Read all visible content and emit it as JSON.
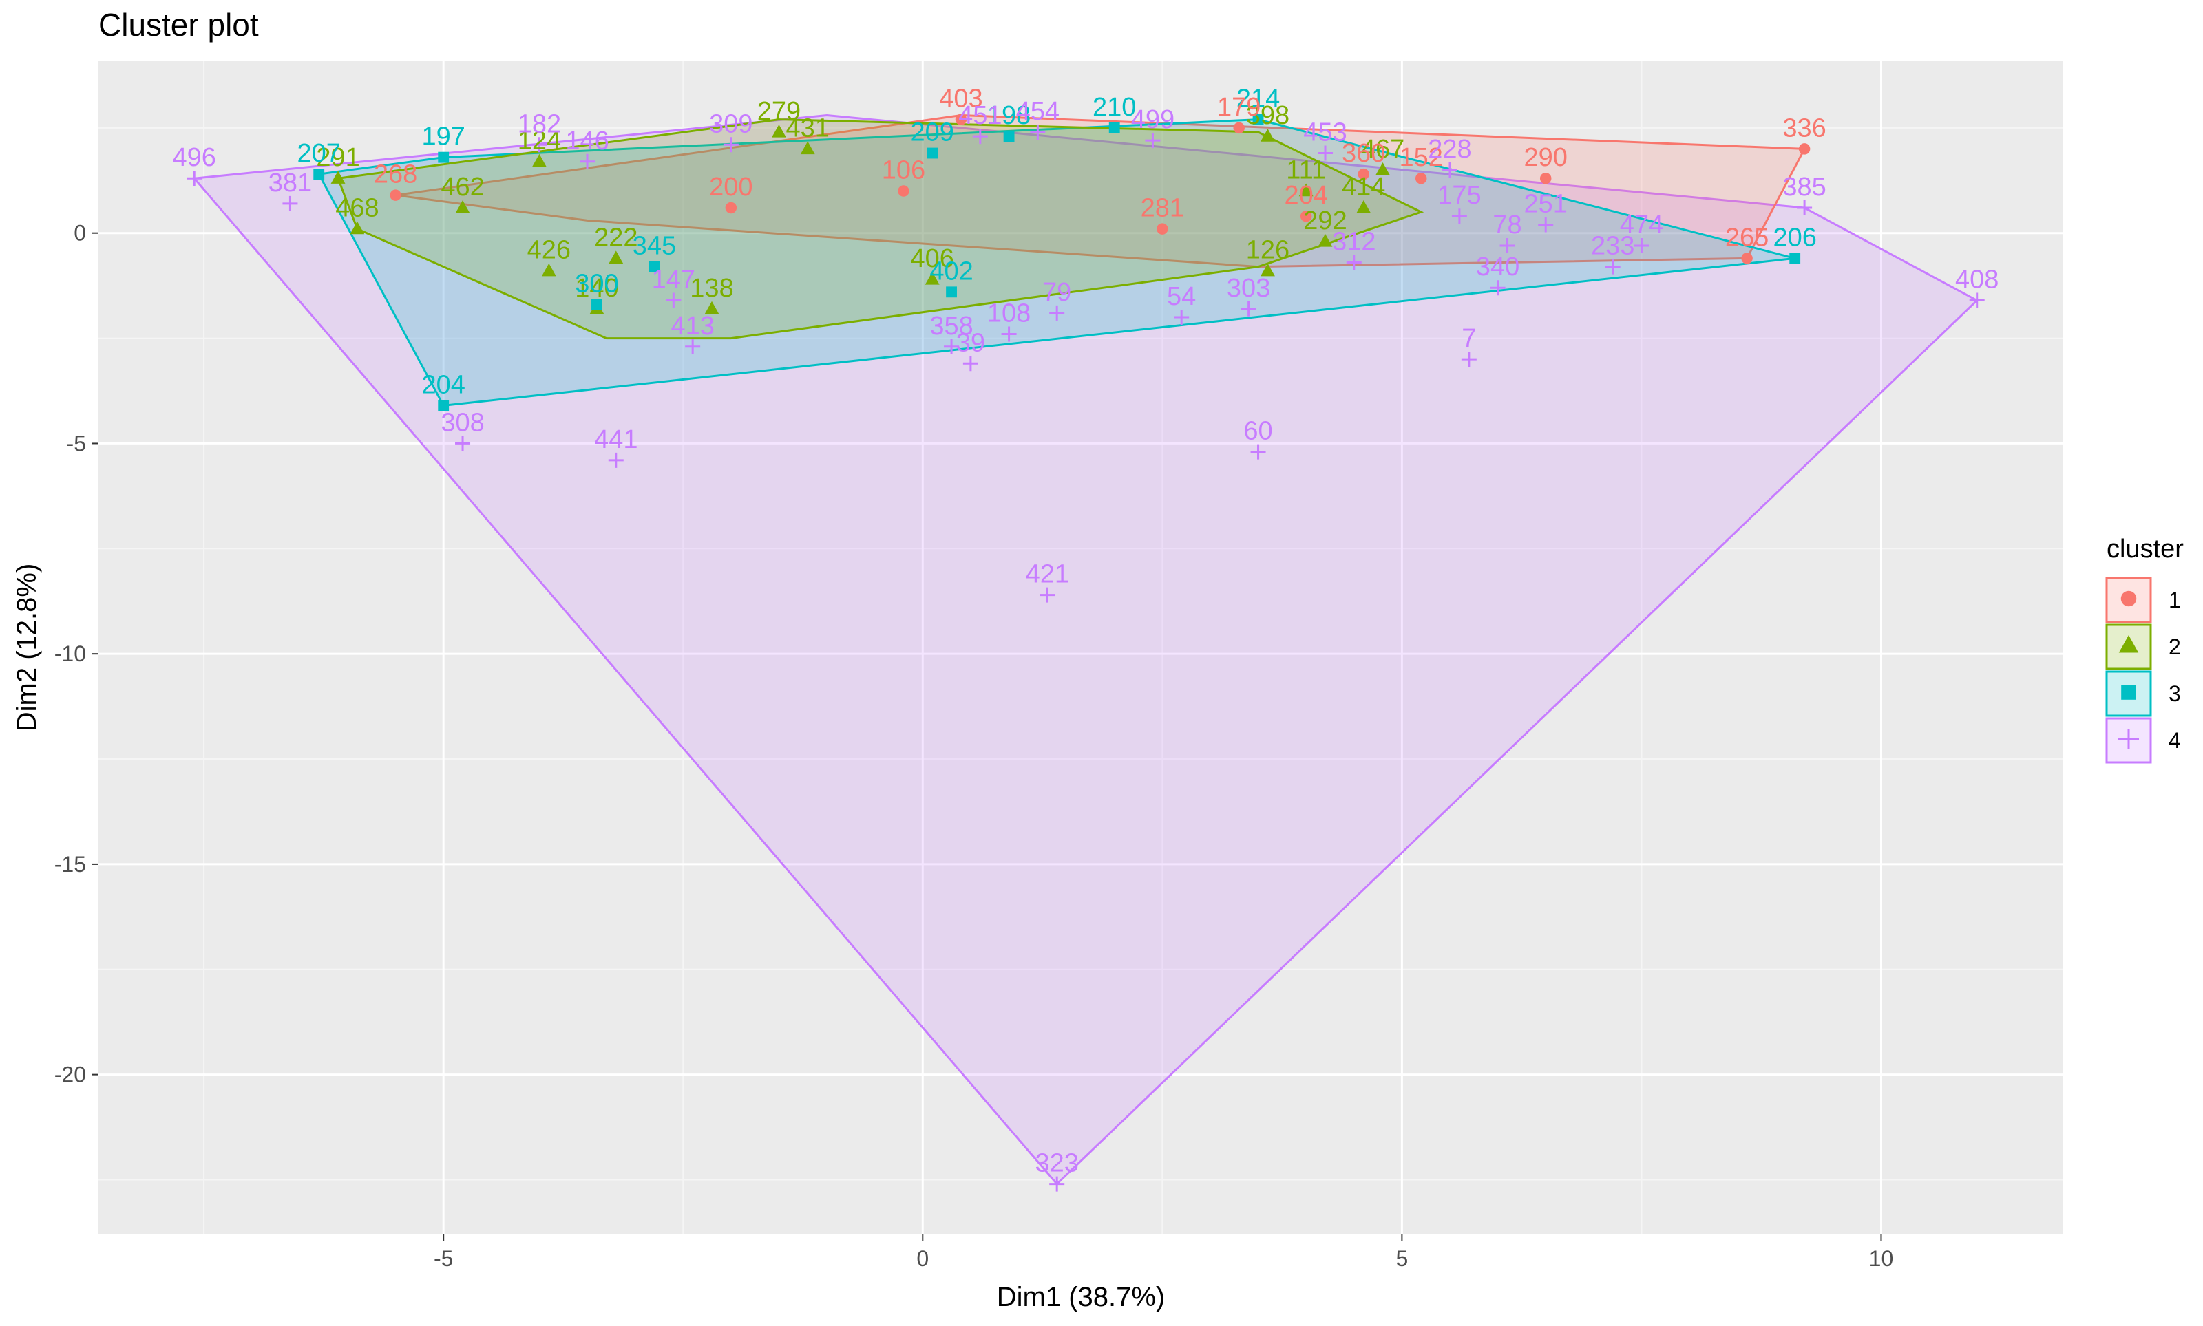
{
  "chart_data": {
    "type": "scatter",
    "title": "Cluster plot",
    "xlabel": "Dim1 (38.7%)",
    "ylabel": "Dim2 (12.8%)",
    "xlim": [
      -8.6,
      11.9
    ],
    "ylim": [
      -23.8,
      4.1
    ],
    "xticks": [
      -5,
      0,
      5,
      10
    ],
    "yticks": [
      0,
      -5,
      -10,
      -15,
      -20
    ],
    "grid": true,
    "legend": {
      "title": "cluster",
      "position": "right"
    },
    "series": [
      {
        "name": "1",
        "color": "#F8766D",
        "shape": "circle",
        "hull": [
          [
            -5.5,
            0.9
          ],
          [
            0.4,
            2.8
          ],
          [
            1.5,
            2.7
          ],
          [
            9.2,
            2.0
          ],
          [
            8.6,
            -0.6
          ],
          [
            3.5,
            -0.8
          ],
          [
            -3.5,
            0.3
          ]
        ],
        "points": [
          {
            "label": "403",
            "x": 0.4,
            "y": 2.7
          },
          {
            "label": "336",
            "x": 9.2,
            "y": 2.0
          },
          {
            "label": "290",
            "x": 6.5,
            "y": 1.3
          },
          {
            "label": "265",
            "x": 8.6,
            "y": -0.6
          },
          {
            "label": "179",
            "x": 3.3,
            "y": 2.5
          },
          {
            "label": "268",
            "x": -5.5,
            "y": 0.9
          },
          {
            "label": "281",
            "x": 2.5,
            "y": 0.1
          },
          {
            "label": "204",
            "x": 4.0,
            "y": 0.4
          },
          {
            "label": "360",
            "x": 4.6,
            "y": 1.4
          },
          {
            "label": "152",
            "x": 5.2,
            "y": 1.3
          },
          {
            "label": "200",
            "x": -2.0,
            "y": 0.6
          },
          {
            "label": "106",
            "x": -0.2,
            "y": 1.0
          }
        ]
      },
      {
        "name": "2",
        "color": "#7CAE00",
        "shape": "triangle",
        "hull": [
          [
            -6.1,
            1.3
          ],
          [
            -1.5,
            2.7
          ],
          [
            3.5,
            2.4
          ],
          [
            5.2,
            0.5
          ],
          [
            3.5,
            -0.8
          ],
          [
            -2.0,
            -2.5
          ],
          [
            -3.3,
            -2.5
          ],
          [
            -5.9,
            0.1
          ]
        ],
        "points": [
          {
            "label": "291",
            "x": -6.1,
            "y": 1.3
          },
          {
            "label": "468",
            "x": -5.9,
            "y": 0.1
          },
          {
            "label": "462",
            "x": -4.8,
            "y": 0.6
          },
          {
            "label": "426",
            "x": -3.9,
            "y": -0.9
          },
          {
            "label": "140",
            "x": -3.4,
            "y": -1.8
          },
          {
            "label": "222",
            "x": -3.2,
            "y": -0.6
          },
          {
            "label": "138",
            "x": -2.2,
            "y": -1.8
          },
          {
            "label": "279",
            "x": -1.5,
            "y": 2.4
          },
          {
            "label": "431",
            "x": -1.2,
            "y": 2.0
          },
          {
            "label": "124",
            "x": -4.0,
            "y": 1.7
          },
          {
            "label": "126",
            "x": 3.6,
            "y": -0.9
          },
          {
            "label": "292",
            "x": 4.2,
            "y": -0.2
          },
          {
            "label": "414",
            "x": 4.6,
            "y": 0.6
          },
          {
            "label": "467",
            "x": 4.8,
            "y": 1.5
          },
          {
            "label": "406",
            "x": 0.1,
            "y": -1.1
          },
          {
            "label": "398",
            "x": 3.6,
            "y": 2.3
          },
          {
            "label": "111",
            "x": 4.0,
            "y": 1.0
          }
        ]
      },
      {
        "name": "3",
        "color": "#00BFC4",
        "shape": "square",
        "hull": [
          [
            -6.3,
            1.4
          ],
          [
            -5.0,
            1.8
          ],
          [
            3.5,
            2.7
          ],
          [
            9.1,
            -0.6
          ],
          [
            -5.0,
            -4.1
          ]
        ],
        "points": [
          {
            "label": "207",
            "x": -6.3,
            "y": 1.4
          },
          {
            "label": "197",
            "x": -5.0,
            "y": 1.8
          },
          {
            "label": "204",
            "x": -5.0,
            "y": -4.1
          },
          {
            "label": "206",
            "x": 9.1,
            "y": -0.6
          },
          {
            "label": "210",
            "x": 2.0,
            "y": 2.5
          },
          {
            "label": "214",
            "x": 3.5,
            "y": 2.7
          },
          {
            "label": "300",
            "x": -3.4,
            "y": -1.7
          },
          {
            "label": "198",
            "x": 0.9,
            "y": 2.3
          },
          {
            "label": "345",
            "x": -2.8,
            "y": -0.8
          },
          {
            "label": "402",
            "x": 0.3,
            "y": -1.4
          },
          {
            "label": "209",
            "x": 0.1,
            "y": 1.9
          }
        ]
      },
      {
        "name": "4",
        "color": "#C77CFF",
        "shape": "plus",
        "hull": [
          [
            -7.6,
            1.3
          ],
          [
            -1.0,
            2.8
          ],
          [
            9.2,
            0.6
          ],
          [
            11.0,
            -1.6
          ],
          [
            1.4,
            -22.6
          ]
        ],
        "points": [
          {
            "label": "496",
            "x": -7.6,
            "y": 1.3
          },
          {
            "label": "381",
            "x": -6.6,
            "y": 0.7
          },
          {
            "label": "182",
            "x": -4.0,
            "y": 2.1
          },
          {
            "label": "146",
            "x": -3.5,
            "y": 1.7
          },
          {
            "label": "308",
            "x": -4.8,
            "y": -5.0
          },
          {
            "label": "441",
            "x": -3.2,
            "y": -5.4
          },
          {
            "label": "309",
            "x": -2.0,
            "y": 2.1
          },
          {
            "label": "454",
            "x": 1.2,
            "y": 2.4
          },
          {
            "label": "451",
            "x": 0.6,
            "y": 2.3
          },
          {
            "label": "499",
            "x": 2.4,
            "y": 2.2
          },
          {
            "label": "453",
            "x": 4.2,
            "y": 1.9
          },
          {
            "label": "228",
            "x": 5.5,
            "y": 1.5
          },
          {
            "label": "385",
            "x": 9.2,
            "y": 0.6
          },
          {
            "label": "408",
            "x": 11.0,
            "y": -1.6
          },
          {
            "label": "474",
            "x": 7.5,
            "y": -0.3
          },
          {
            "label": "233",
            "x": 7.2,
            "y": -0.8
          },
          {
            "label": "340",
            "x": 6.0,
            "y": -1.3
          },
          {
            "label": "175",
            "x": 5.6,
            "y": 0.4
          },
          {
            "label": "78",
            "x": 6.1,
            "y": -0.3
          },
          {
            "label": "251",
            "x": 6.5,
            "y": 0.2
          },
          {
            "label": "7",
            "x": 5.7,
            "y": -3.0
          },
          {
            "label": "312",
            "x": 4.5,
            "y": -0.7
          },
          {
            "label": "303",
            "x": 3.4,
            "y": -1.8
          },
          {
            "label": "60",
            "x": 3.5,
            "y": -5.2
          },
          {
            "label": "54",
            "x": 2.7,
            "y": -2.0
          },
          {
            "label": "421",
            "x": 1.3,
            "y": -8.6
          },
          {
            "label": "79",
            "x": 1.4,
            "y": -1.9
          },
          {
            "label": "108",
            "x": 0.9,
            "y": -2.4
          },
          {
            "label": "39",
            "x": 0.5,
            "y": -3.1
          },
          {
            "label": "358",
            "x": 0.3,
            "y": -2.7
          },
          {
            "label": "413",
            "x": -2.4,
            "y": -2.7
          },
          {
            "label": "147",
            "x": -2.6,
            "y": -1.6
          },
          {
            "label": "323",
            "x": 1.4,
            "y": -22.6
          }
        ]
      }
    ]
  }
}
